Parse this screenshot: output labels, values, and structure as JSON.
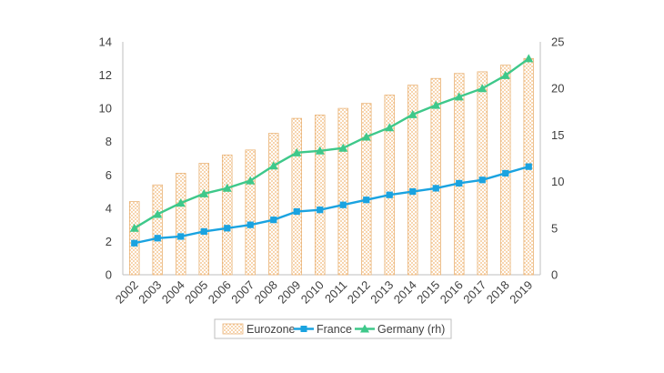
{
  "chart_data": {
    "type": "bar",
    "categories": [
      "2002",
      "2003",
      "2004",
      "2005",
      "2006",
      "2007",
      "2008",
      "2009",
      "2010",
      "2011",
      "2012",
      "2013",
      "2014",
      "2015",
      "2016",
      "2017",
      "2018",
      "2019"
    ],
    "series": [
      {
        "name": "Eurozone",
        "type": "bar",
        "axis": "left",
        "color": "#f7c98b",
        "values": [
          4.4,
          5.4,
          6.1,
          6.7,
          7.2,
          7.5,
          8.5,
          9.4,
          9.6,
          10.0,
          10.3,
          10.8,
          11.4,
          11.8,
          12.1,
          12.2,
          12.6,
          13.0
        ]
      },
      {
        "name": "France",
        "type": "line",
        "axis": "left",
        "color": "#1aa3e0",
        "marker": "square",
        "values": [
          1.9,
          2.2,
          2.3,
          2.6,
          2.8,
          3.0,
          3.3,
          3.8,
          3.9,
          4.2,
          4.5,
          4.8,
          5.0,
          5.2,
          5.5,
          5.7,
          6.1,
          6.5
        ]
      },
      {
        "name": "Germany (rh)",
        "type": "line",
        "axis": "right",
        "color": "#3ec88a",
        "marker": "triangle",
        "values": [
          5.0,
          6.5,
          7.7,
          8.7,
          9.3,
          10.1,
          11.7,
          13.1,
          13.3,
          13.6,
          14.8,
          15.8,
          17.2,
          18.2,
          19.1,
          20.0,
          21.4,
          23.2
        ]
      }
    ],
    "y_left": {
      "min": 0,
      "max": 14,
      "ticks": [
        "0",
        "2",
        "4",
        "6",
        "8",
        "10",
        "12",
        "14"
      ]
    },
    "y_right": {
      "min": 0,
      "max": 25,
      "ticks": [
        "0",
        "5",
        "10",
        "15",
        "20",
        "25"
      ]
    },
    "grid": false,
    "legend": "bottom"
  }
}
